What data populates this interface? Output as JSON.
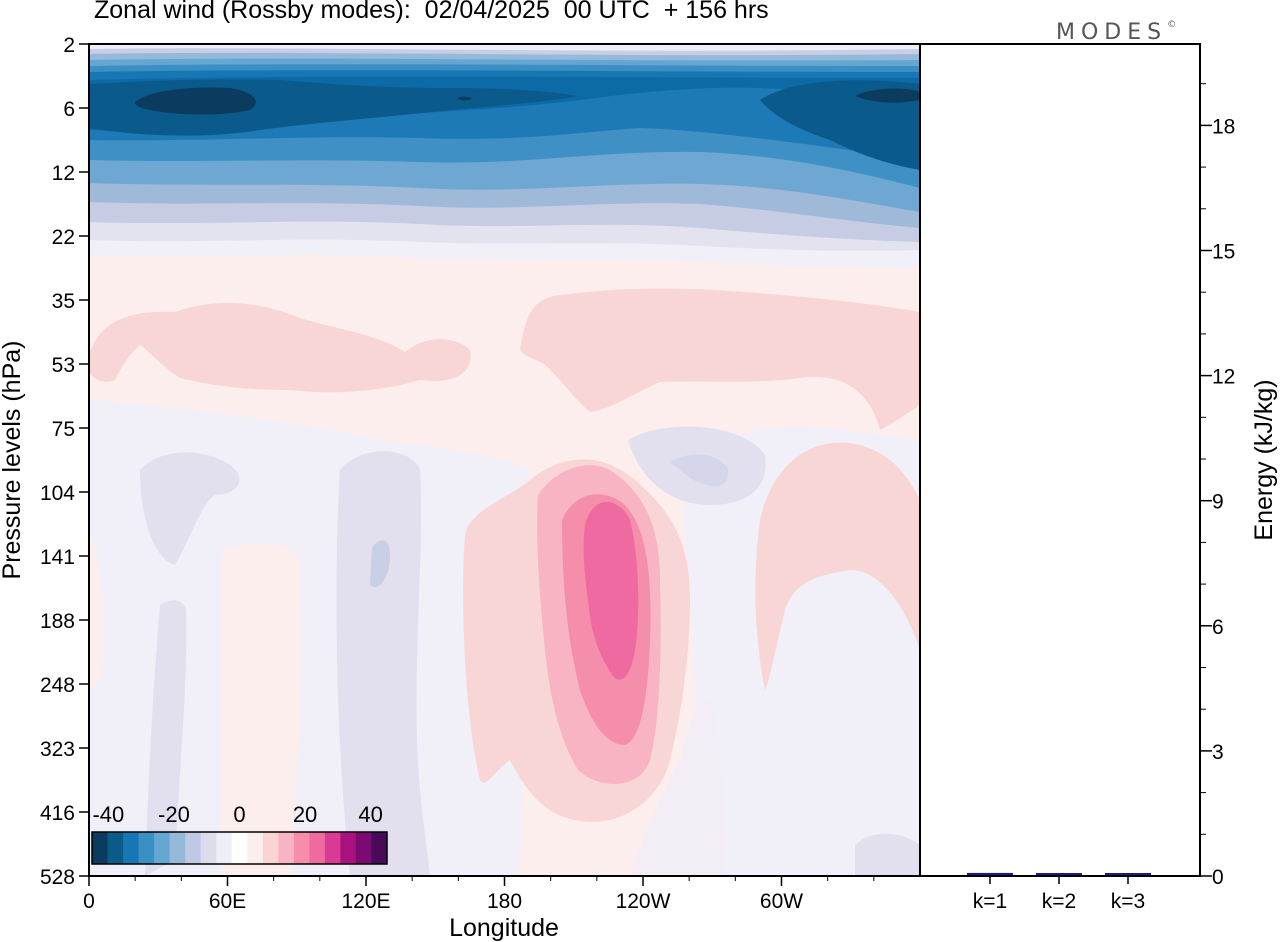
{
  "chart_data": [
    {
      "type": "heatmap",
      "title": "Zonal wind (Rossby modes):  02/04/2025  00 UTC  + 156 hrs",
      "xlabel": "Longitude",
      "ylabel": "Pressure levels (hPa)",
      "x_ticks": [
        "0",
        "60E",
        "120E",
        "180",
        "120W",
        "60W"
      ],
      "x_range_deg": [
        0,
        360
      ],
      "y_ticks": [
        2,
        6,
        12,
        22,
        35,
        53,
        75,
        104,
        141,
        188,
        248,
        323,
        416,
        528
      ],
      "y_scale": "log",
      "colorbar": {
        "tick_labels": [
          "-40",
          "-20",
          "0",
          "20",
          "40"
        ],
        "levels": [
          -45,
          -40,
          -35,
          -30,
          -25,
          -20,
          -15,
          -10,
          -5,
          0,
          5,
          10,
          15,
          20,
          25,
          30,
          35,
          40,
          45
        ],
        "colors": [
          "#0b3b5e",
          "#0a5a8a",
          "#1677b4",
          "#3b8fc3",
          "#64a7d2",
          "#96b9da",
          "#bfc9e3",
          "#dcdcec",
          "#eeeef6",
          "#ffffff",
          "#fdeeee",
          "#fad3d4",
          "#f8b4c2",
          "#f48eab",
          "#ef6aa0",
          "#d93b94",
          "#a8117e",
          "#7a0a6f",
          "#4a0a5c"
        ]
      },
      "features": [
        {
          "description": "easterly core",
          "lon": 40,
          "pressure": 6,
          "value": -45
        },
        {
          "description": "easterly core",
          "lon": 330,
          "pressure": 6,
          "value": -45
        },
        {
          "description": "westerly maximum",
          "lon": 230,
          "pressure": 188,
          "value": 20
        }
      ]
    },
    {
      "type": "bar",
      "ylabel": "Energy (kJ/kg)",
      "categories": [
        "k=1",
        "k=2",
        "k=3"
      ],
      "values": [
        0.05,
        0.02,
        0.02
      ],
      "ylim": [
        0,
        20
      ],
      "y_ticks": [
        "0",
        "3",
        "6",
        "9",
        "12",
        "15",
        "18"
      ],
      "bar_color": "#1a1a8c"
    }
  ],
  "branding": {
    "logo_text": "MODES",
    "logo_mark": "©"
  }
}
